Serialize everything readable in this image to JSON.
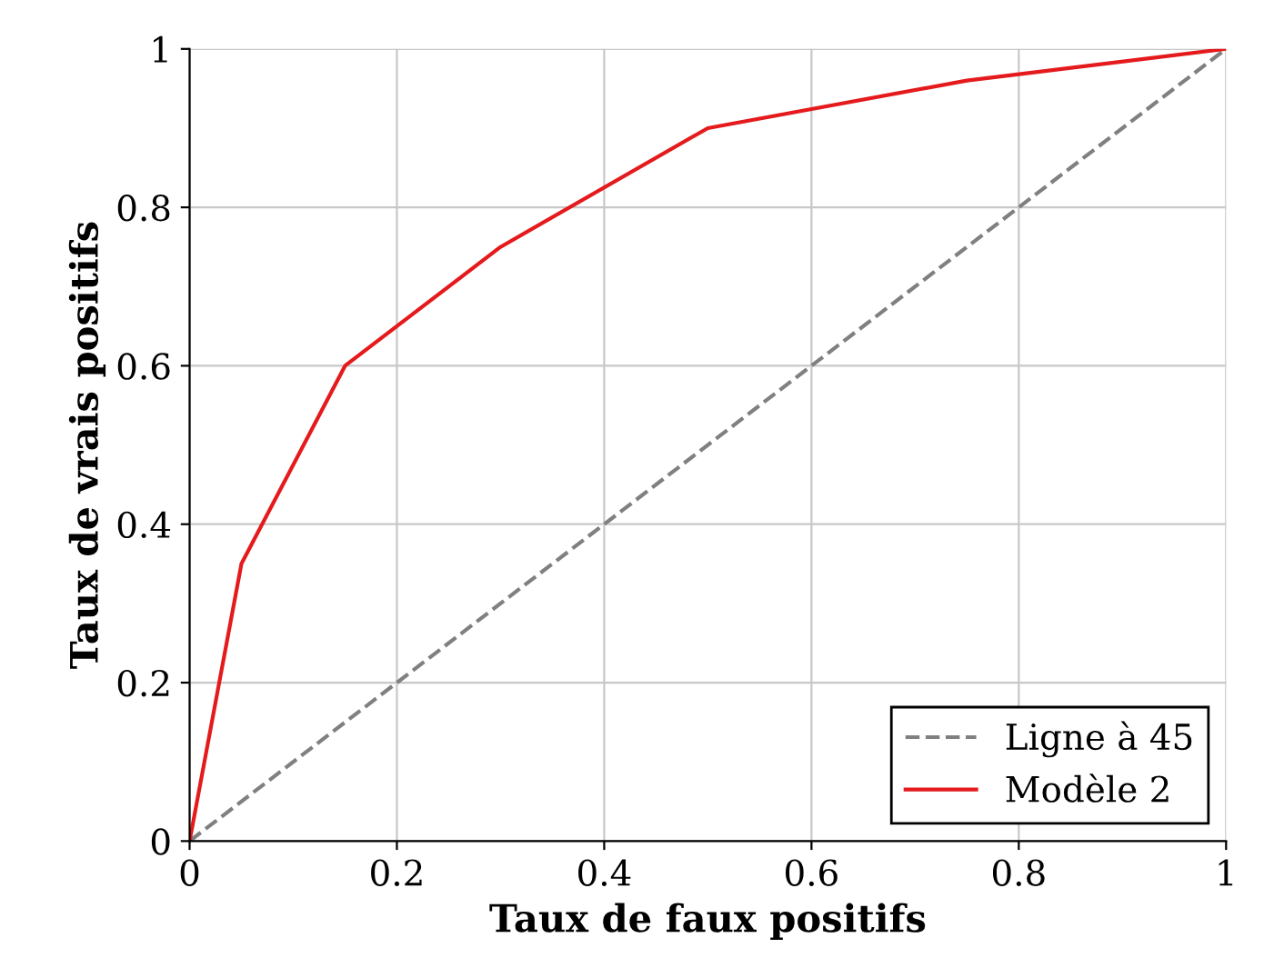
{
  "chart_data": {
    "type": "line",
    "xlabel": "Taux de faux positifs",
    "ylabel": "Taux de vrais positifs",
    "series": [
      {
        "name": "Ligne à 45",
        "color": "#808080",
        "line_style": "dashed",
        "x": [
          0,
          1
        ],
        "values": [
          0,
          1
        ]
      },
      {
        "name": "Modèle 2",
        "color": "#e41a1c",
        "line_style": "solid",
        "x": [
          0,
          0.05,
          0.15,
          0.3,
          0.5,
          0.75,
          1
        ],
        "values": [
          0,
          0.35,
          0.6,
          0.75,
          0.9,
          0.96,
          1
        ]
      }
    ],
    "xlim": [
      0,
      1
    ],
    "ylim": [
      0,
      1
    ],
    "xticks": [
      0,
      0.2,
      0.4,
      0.6,
      0.8,
      1
    ],
    "yticks": [
      0,
      0.2,
      0.4,
      0.6,
      0.8,
      1
    ],
    "grid": true,
    "legend": "bottom right",
    "marker": "none"
  }
}
